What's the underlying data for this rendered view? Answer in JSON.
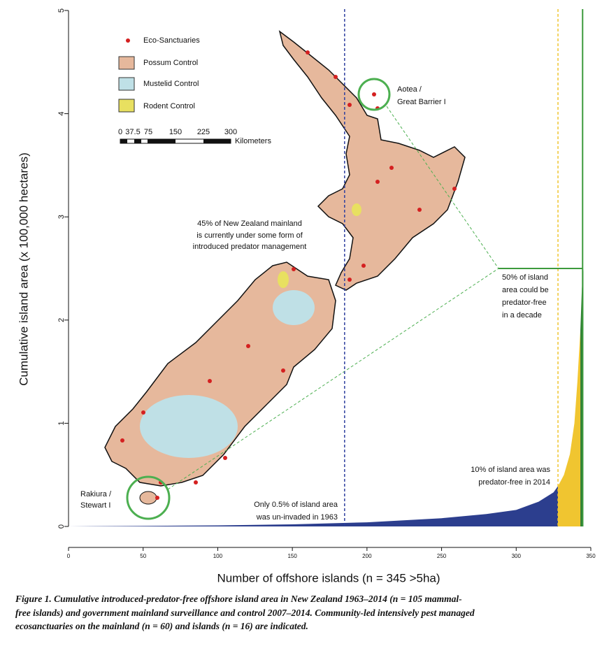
{
  "chart_data": {
    "type": "area",
    "xlabel": "Number of offshore islands (n = 345 >5ha)",
    "ylabel": "Cumulative island area (x 100,000 hectares)",
    "xlim": [
      0,
      350
    ],
    "xticks": [
      0,
      50,
      100,
      150,
      200,
      250,
      300,
      350
    ],
    "ylim": [
      0,
      5
    ],
    "yticks": [
      0,
      1,
      2,
      3,
      4,
      5
    ],
    "series": [
      {
        "color": "#2c3e8e",
        "x": [
          0,
          50,
          100,
          150,
          200,
          250,
          280,
          300,
          315,
          325,
          328
        ],
        "values": [
          0,
          0.005,
          0.01,
          0.02,
          0.04,
          0.08,
          0.12,
          0.16,
          0.24,
          0.33,
          0.39
        ]
      },
      {
        "color": "#f0c530",
        "x": [
          328,
          332,
          336,
          339,
          341,
          343
        ],
        "values": [
          0.39,
          0.5,
          0.7,
          1.0,
          1.4,
          1.9
        ]
      },
      {
        "color": "#2e7d32",
        "x": [
          343,
          344,
          345
        ],
        "values": [
          1.9,
          2.3,
          2.5
        ]
      }
    ],
    "vlines": [
      {
        "value": 185,
        "color": "#2c3e9e",
        "dashed": true
      },
      {
        "value": 328,
        "color": "#f0c530",
        "dashed": true
      },
      {
        "value": 344.5,
        "color": "#3c9a3c",
        "dashed": false
      }
    ],
    "hline": {
      "value": 2.5,
      "color": "#3c9a3c"
    },
    "annotations": [
      {
        "lines": [
          "50% of island",
          "area could be",
          "predator-free",
          "in a decade"
        ]
      },
      {
        "lines": [
          "10% of island area was",
          "predator-free in 2014"
        ]
      },
      {
        "lines": [
          "Only 0.5% of island area",
          "was un-invaded in 1963"
        ]
      }
    ]
  },
  "map": {
    "legend": [
      "Eco-Sanctuaries",
      "Possum Control",
      "Mustelid Control",
      "Rodent Control"
    ],
    "scale": [
      "0",
      "37.5",
      "75",
      "150",
      "225",
      "300"
    ],
    "scale_unit": "Kilometers",
    "note": [
      "45% of New Zealand mainland",
      "is currently under some form of",
      "introduced predator management"
    ],
    "aotea": [
      "Aotea /",
      "Great Barrier I"
    ],
    "rakiura": [
      "Rakiura /",
      "Stewart I"
    ]
  },
  "caption": [
    "Figure 1. Cumulative introduced-predator-free offshore island area in New Zealand 1963–2014 (n = 105 mammal-",
    "free islands) and government mainland surveillance and control 2007–2014. Community-led intensively pest managed",
    "ecosanctuaries on the mainland (n = 60) and islands (n = 16) are indicated."
  ]
}
